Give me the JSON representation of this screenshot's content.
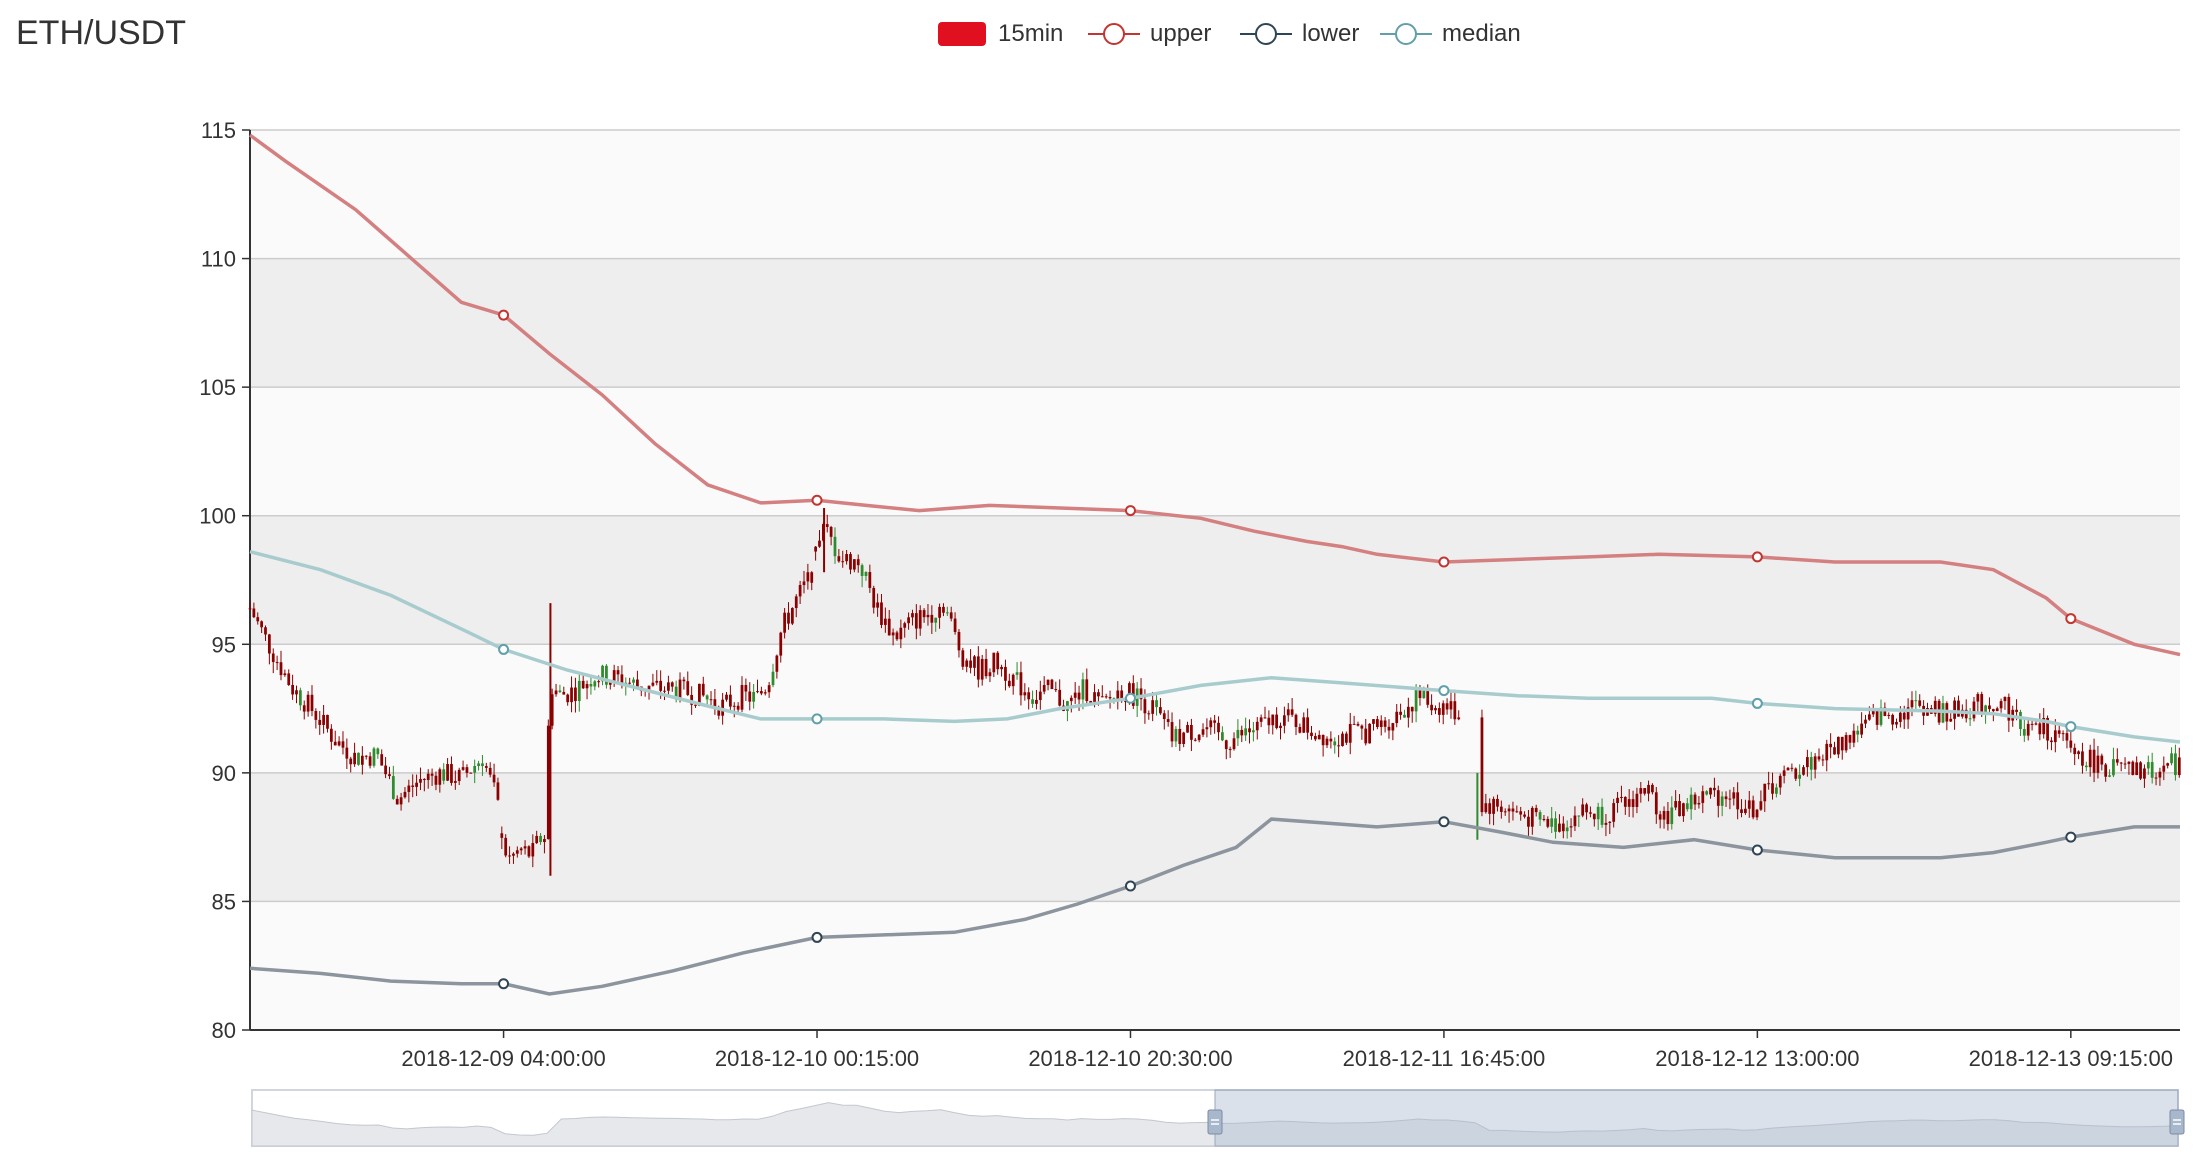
{
  "chart_data": {
    "type": "candlestick",
    "title": "ETH/USDT",
    "legend": [
      {
        "name": "15min",
        "color": "#e01020",
        "symbol": "rect"
      },
      {
        "name": "upper",
        "color": "#c23531",
        "symbol": "circle"
      },
      {
        "name": "lower",
        "color": "#2f4554",
        "symbol": "circle"
      },
      {
        "name": "median",
        "color": "#61a0a8",
        "symbol": "circle"
      }
    ],
    "legend_placement": "top-center",
    "ylim": [
      80,
      115
    ],
    "yticks": [
      80,
      85,
      90,
      95,
      100,
      105,
      110,
      115
    ],
    "x_range": [
      0,
      504
    ],
    "xticks": [
      {
        "x": 72,
        "label": "2018-12-09 04:00:00"
      },
      {
        "x": 161,
        "label": "2018-12-10 00:15:00"
      },
      {
        "x": 250,
        "label": "2018-12-10 20:30:00"
      },
      {
        "x": 339,
        "label": "2018-12-11 16:45:00"
      },
      {
        "x": 428,
        "label": "2018-12-12 13:00:00"
      },
      {
        "x": 517,
        "label": "2018-12-13 09:15:00"
      }
    ],
    "grid": "alternating-bands",
    "colors": {
      "up_candle": "#8b0000",
      "down_candle": "#2e8b2e",
      "upper": "#d47f80",
      "lower": "#8c949e",
      "median": "#a8ccce"
    },
    "series": [
      {
        "name": "upper",
        "points": [
          [
            0,
            114.8
          ],
          [
            10,
            113.8
          ],
          [
            30,
            111.9
          ],
          [
            50,
            109.5
          ],
          [
            60,
            108.3
          ],
          [
            72,
            107.8
          ],
          [
            85,
            106.3
          ],
          [
            100,
            104.7
          ],
          [
            115,
            102.8
          ],
          [
            130,
            101.2
          ],
          [
            145,
            100.5
          ],
          [
            161,
            100.6
          ],
          [
            175,
            100.4
          ],
          [
            190,
            100.2
          ],
          [
            210,
            100.4
          ],
          [
            230,
            100.3
          ],
          [
            250,
            100.2
          ],
          [
            270,
            99.9
          ],
          [
            285,
            99.4
          ],
          [
            300,
            99.0
          ],
          [
            310,
            98.8
          ],
          [
            320,
            98.5
          ],
          [
            339,
            98.2
          ],
          [
            360,
            98.3
          ],
          [
            380,
            98.4
          ],
          [
            400,
            98.5
          ],
          [
            428,
            98.4
          ],
          [
            450,
            98.2
          ],
          [
            480,
            98.2
          ],
          [
            495,
            97.9
          ],
          [
            510,
            96.8
          ],
          [
            517,
            96.0
          ],
          [
            535,
            95.0
          ],
          [
            548,
            94.6
          ]
        ]
      },
      {
        "name": "lower",
        "points": [
          [
            0,
            82.4
          ],
          [
            20,
            82.2
          ],
          [
            40,
            81.9
          ],
          [
            60,
            81.8
          ],
          [
            72,
            81.8
          ],
          [
            85,
            81.4
          ],
          [
            100,
            81.7
          ],
          [
            120,
            82.3
          ],
          [
            140,
            83.0
          ],
          [
            161,
            83.6
          ],
          [
            180,
            83.7
          ],
          [
            200,
            83.8
          ],
          [
            220,
            84.3
          ],
          [
            235,
            84.9
          ],
          [
            250,
            85.6
          ],
          [
            265,
            86.4
          ],
          [
            280,
            87.1
          ],
          [
            290,
            88.2
          ],
          [
            310,
            88.0
          ],
          [
            320,
            87.9
          ],
          [
            339,
            88.1
          ],
          [
            355,
            87.7
          ],
          [
            370,
            87.3
          ],
          [
            390,
            87.1
          ],
          [
            410,
            87.4
          ],
          [
            428,
            87.0
          ],
          [
            450,
            86.7
          ],
          [
            480,
            86.7
          ],
          [
            495,
            86.9
          ],
          [
            510,
            87.3
          ],
          [
            517,
            87.5
          ],
          [
            535,
            87.9
          ],
          [
            548,
            87.9
          ]
        ]
      },
      {
        "name": "median",
        "points": [
          [
            0,
            98.6
          ],
          [
            20,
            97.9
          ],
          [
            40,
            96.9
          ],
          [
            60,
            95.6
          ],
          [
            72,
            94.8
          ],
          [
            90,
            94.0
          ],
          [
            110,
            93.3
          ],
          [
            130,
            92.6
          ],
          [
            145,
            92.1
          ],
          [
            161,
            92.1
          ],
          [
            180,
            92.1
          ],
          [
            200,
            92.0
          ],
          [
            215,
            92.1
          ],
          [
            230,
            92.5
          ],
          [
            250,
            92.9
          ],
          [
            270,
            93.4
          ],
          [
            290,
            93.7
          ],
          [
            310,
            93.5
          ],
          [
            339,
            93.2
          ],
          [
            360,
            93.0
          ],
          [
            380,
            92.9
          ],
          [
            400,
            92.9
          ],
          [
            415,
            92.9
          ],
          [
            428,
            92.7
          ],
          [
            450,
            92.5
          ],
          [
            480,
            92.4
          ],
          [
            495,
            92.3
          ],
          [
            510,
            92.0
          ],
          [
            517,
            91.8
          ],
          [
            535,
            91.4
          ],
          [
            548,
            91.2
          ]
        ]
      }
    ],
    "markers": {
      "upper": [
        72,
        161,
        250,
        339,
        428,
        517
      ],
      "lower": [
        72,
        161,
        250,
        339,
        428,
        517
      ],
      "median": [
        72,
        161,
        250,
        339,
        428,
        517
      ]
    },
    "candles_anchor": [
      [
        0,
        96.4
      ],
      [
        6,
        94.8
      ],
      [
        12,
        93.3
      ],
      [
        18,
        92.4
      ],
      [
        24,
        91.3
      ],
      [
        30,
        90.6
      ],
      [
        36,
        90.7
      ],
      [
        42,
        89.0
      ],
      [
        48,
        89.7
      ],
      [
        54,
        90.0
      ],
      [
        60,
        89.8
      ],
      [
        66,
        90.6
      ],
      [
        70,
        89.0
      ],
      [
        73,
        86.6
      ],
      [
        77,
        87.0
      ],
      [
        80,
        86.8
      ],
      [
        82,
        87.4
      ],
      [
        84,
        87.6
      ],
      [
        85,
        93.5
      ],
      [
        88,
        93.0
      ],
      [
        92,
        93.2
      ],
      [
        98,
        93.8
      ],
      [
        104,
        93.7
      ],
      [
        110,
        93.4
      ],
      [
        116,
        93.3
      ],
      [
        122,
        93.2
      ],
      [
        128,
        93.0
      ],
      [
        134,
        92.6
      ],
      [
        140,
        93.0
      ],
      [
        144,
        92.9
      ],
      [
        147,
        93.5
      ],
      [
        151,
        95.6
      ],
      [
        155,
        96.7
      ],
      [
        159,
        97.6
      ],
      [
        163,
        99.5
      ],
      [
        168,
        98.3
      ],
      [
        173,
        98.2
      ],
      [
        178,
        96.4
      ],
      [
        183,
        95.3
      ],
      [
        188,
        95.9
      ],
      [
        193,
        96.2
      ],
      [
        197,
        96.6
      ],
      [
        202,
        94.6
      ],
      [
        207,
        94.0
      ],
      [
        212,
        94.3
      ],
      [
        217,
        93.6
      ],
      [
        222,
        93.0
      ],
      [
        227,
        93.2
      ],
      [
        232,
        92.6
      ],
      [
        237,
        93.3
      ],
      [
        242,
        92.6
      ],
      [
        247,
        93.2
      ],
      [
        252,
        93.0
      ],
      [
        257,
        92.4
      ],
      [
        262,
        91.3
      ],
      [
        267,
        91.6
      ],
      [
        272,
        91.7
      ],
      [
        277,
        91.2
      ],
      [
        282,
        91.5
      ],
      [
        287,
        91.8
      ],
      [
        292,
        92.2
      ],
      [
        297,
        92.0
      ],
      [
        302,
        91.6
      ],
      [
        307,
        91.4
      ],
      [
        312,
        91.5
      ],
      [
        317,
        91.6
      ],
      [
        322,
        91.9
      ],
      [
        327,
        92.4
      ],
      [
        332,
        93.0
      ],
      [
        336,
        92.6
      ],
      [
        340,
        92.6
      ],
      [
        344,
        92.2
      ],
      [
        348,
        91.6
      ],
      [
        349,
        88.8
      ],
      [
        355,
        88.7
      ],
      [
        360,
        88.4
      ],
      [
        366,
        88.1
      ],
      [
        372,
        88.0
      ],
      [
        378,
        88.5
      ],
      [
        384,
        88.4
      ],
      [
        390,
        88.7
      ],
      [
        396,
        89.4
      ],
      [
        402,
        88.3
      ],
      [
        408,
        88.8
      ],
      [
        414,
        89.1
      ],
      [
        420,
        89.2
      ],
      [
        426,
        88.5
      ],
      [
        432,
        89.5
      ],
      [
        438,
        90.0
      ],
      [
        444,
        90.5
      ],
      [
        450,
        91.0
      ],
      [
        456,
        91.6
      ],
      [
        462,
        92.2
      ],
      [
        468,
        92.3
      ],
      [
        474,
        92.7
      ],
      [
        480,
        92.3
      ],
      [
        486,
        92.4
      ],
      [
        492,
        92.7
      ],
      [
        498,
        92.7
      ],
      [
        504,
        91.7
      ],
      [
        510,
        91.7
      ],
      [
        516,
        91.0
      ],
      [
        522,
        90.5
      ],
      [
        528,
        90.2
      ],
      [
        534,
        90.0
      ],
      [
        540,
        90.1
      ],
      [
        548,
        90.4
      ]
    ]
  },
  "dataZoom": {
    "start": 50,
    "end": 100
  }
}
